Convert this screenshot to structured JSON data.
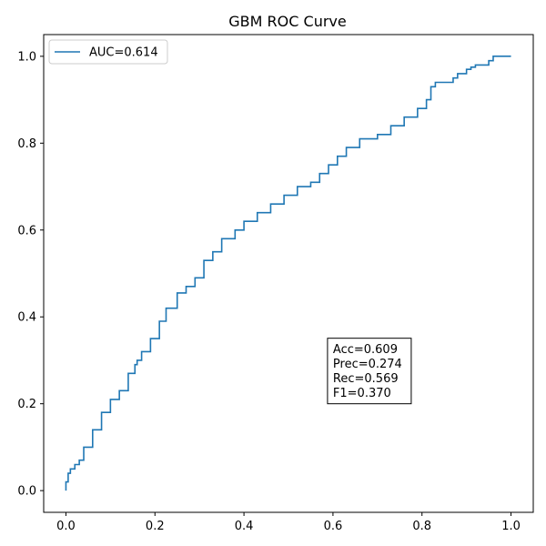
{
  "chart_data": {
    "type": "line",
    "title": "GBM ROC Curve",
    "xlabel": "",
    "ylabel": "",
    "xlim": [
      -0.05,
      1.05
    ],
    "ylim": [
      -0.05,
      1.05
    ],
    "grid": false,
    "legend_placement": "top-left",
    "x_ticks": [
      "0.0",
      "0.2",
      "0.4",
      "0.6",
      "0.8",
      "1.0"
    ],
    "y_ticks": [
      "0.0",
      "0.2",
      "0.4",
      "0.6",
      "0.8",
      "1.0"
    ],
    "series": [
      {
        "name": "AUC=0.614",
        "color": "#1f77b4",
        "x": [
          0.0,
          0.005,
          0.01,
          0.02,
          0.03,
          0.04,
          0.06,
          0.08,
          0.1,
          0.12,
          0.14,
          0.155,
          0.16,
          0.17,
          0.19,
          0.21,
          0.225,
          0.25,
          0.27,
          0.29,
          0.31,
          0.33,
          0.35,
          0.38,
          0.4,
          0.43,
          0.46,
          0.49,
          0.52,
          0.55,
          0.57,
          0.59,
          0.61,
          0.63,
          0.66,
          0.7,
          0.73,
          0.76,
          0.79,
          0.81,
          0.82,
          0.83,
          0.86,
          0.87,
          0.88,
          0.9,
          0.91,
          0.92,
          0.95,
          0.96,
          0.98,
          1.0
        ],
        "y": [
          0.0,
          0.02,
          0.04,
          0.05,
          0.06,
          0.07,
          0.1,
          0.14,
          0.18,
          0.21,
          0.23,
          0.27,
          0.29,
          0.3,
          0.32,
          0.35,
          0.39,
          0.42,
          0.455,
          0.47,
          0.49,
          0.53,
          0.55,
          0.58,
          0.6,
          0.62,
          0.64,
          0.66,
          0.68,
          0.7,
          0.71,
          0.73,
          0.75,
          0.77,
          0.79,
          0.81,
          0.82,
          0.84,
          0.86,
          0.88,
          0.9,
          0.93,
          0.94,
          0.94,
          0.95,
          0.96,
          0.97,
          0.975,
          0.98,
          0.99,
          1.0,
          1.0
        ]
      }
    ],
    "annotation": {
      "lines": [
        "Acc=0.609",
        "Prec=0.274",
        "Rec=0.569",
        "F1=0.370"
      ],
      "anchor": [
        0.6,
        0.2
      ]
    }
  }
}
